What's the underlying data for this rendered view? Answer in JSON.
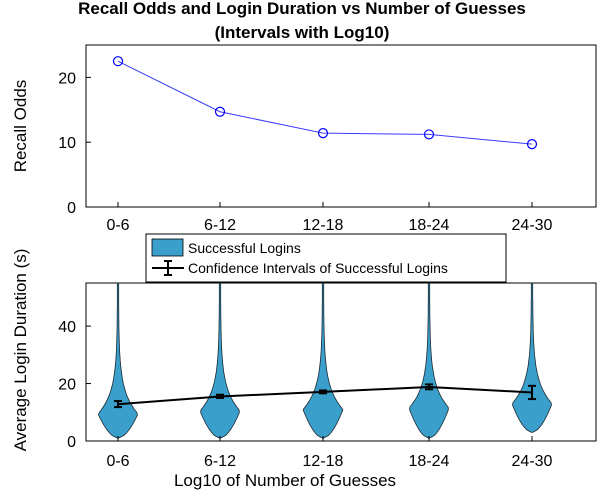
{
  "chart_data": [
    {
      "type": "line",
      "title": "Recall Odds and Login Duration vs Number of Guesses",
      "subtitle": "(Intervals with Log10)",
      "xlabel": "",
      "ylabel": "Recall Odds",
      "categories": [
        "0-6",
        "6-12",
        "12-18",
        "18-24",
        "24-30"
      ],
      "ylim": [
        0,
        25
      ],
      "yticks": [
        0,
        10,
        20
      ],
      "grid": false,
      "colors": {
        "line": "#3b3bff",
        "marker": "#0000ff"
      },
      "series": [
        {
          "values": [
            22.5,
            14.7,
            11.4,
            11.2,
            9.7
          ]
        }
      ]
    },
    {
      "type": "violin",
      "xlabel": "Log10 of Number of Guesses",
      "ylabel": "Average Login Duration (s)",
      "categories": [
        "0-6",
        "6-12",
        "12-18",
        "18-24",
        "24-30"
      ],
      "ylim": [
        0,
        55
      ],
      "yticks": [
        0,
        20,
        40
      ],
      "grid": false,
      "legend_placement": "top",
      "legend": [
        "Successful Logins",
        "Confidence Intervals of Successful Logins"
      ],
      "colors": {
        "violin": "#3a9fcb",
        "ci": "#000000"
      },
      "violins": [
        {
          "peak": 9.5,
          "top": 55,
          "bottom": 1.0
        },
        {
          "peak": 10.5,
          "top": 55,
          "bottom": 1.0
        },
        {
          "peak": 11.0,
          "top": 55,
          "bottom": 1.0
        },
        {
          "peak": 11.5,
          "top": 55,
          "bottom": 1.0
        },
        {
          "peak": 13.0,
          "top": 55,
          "bottom": 3.0
        }
      ],
      "confidence_intervals": [
        {
          "mean": 12.8,
          "low": 11.8,
          "high": 13.9
        },
        {
          "mean": 15.5,
          "low": 15.0,
          "high": 16.1
        },
        {
          "mean": 17.1,
          "low": 16.6,
          "high": 17.6
        },
        {
          "mean": 18.8,
          "low": 18.0,
          "high": 19.7
        },
        {
          "mean": 16.9,
          "low": 14.6,
          "high": 19.2
        }
      ]
    }
  ]
}
